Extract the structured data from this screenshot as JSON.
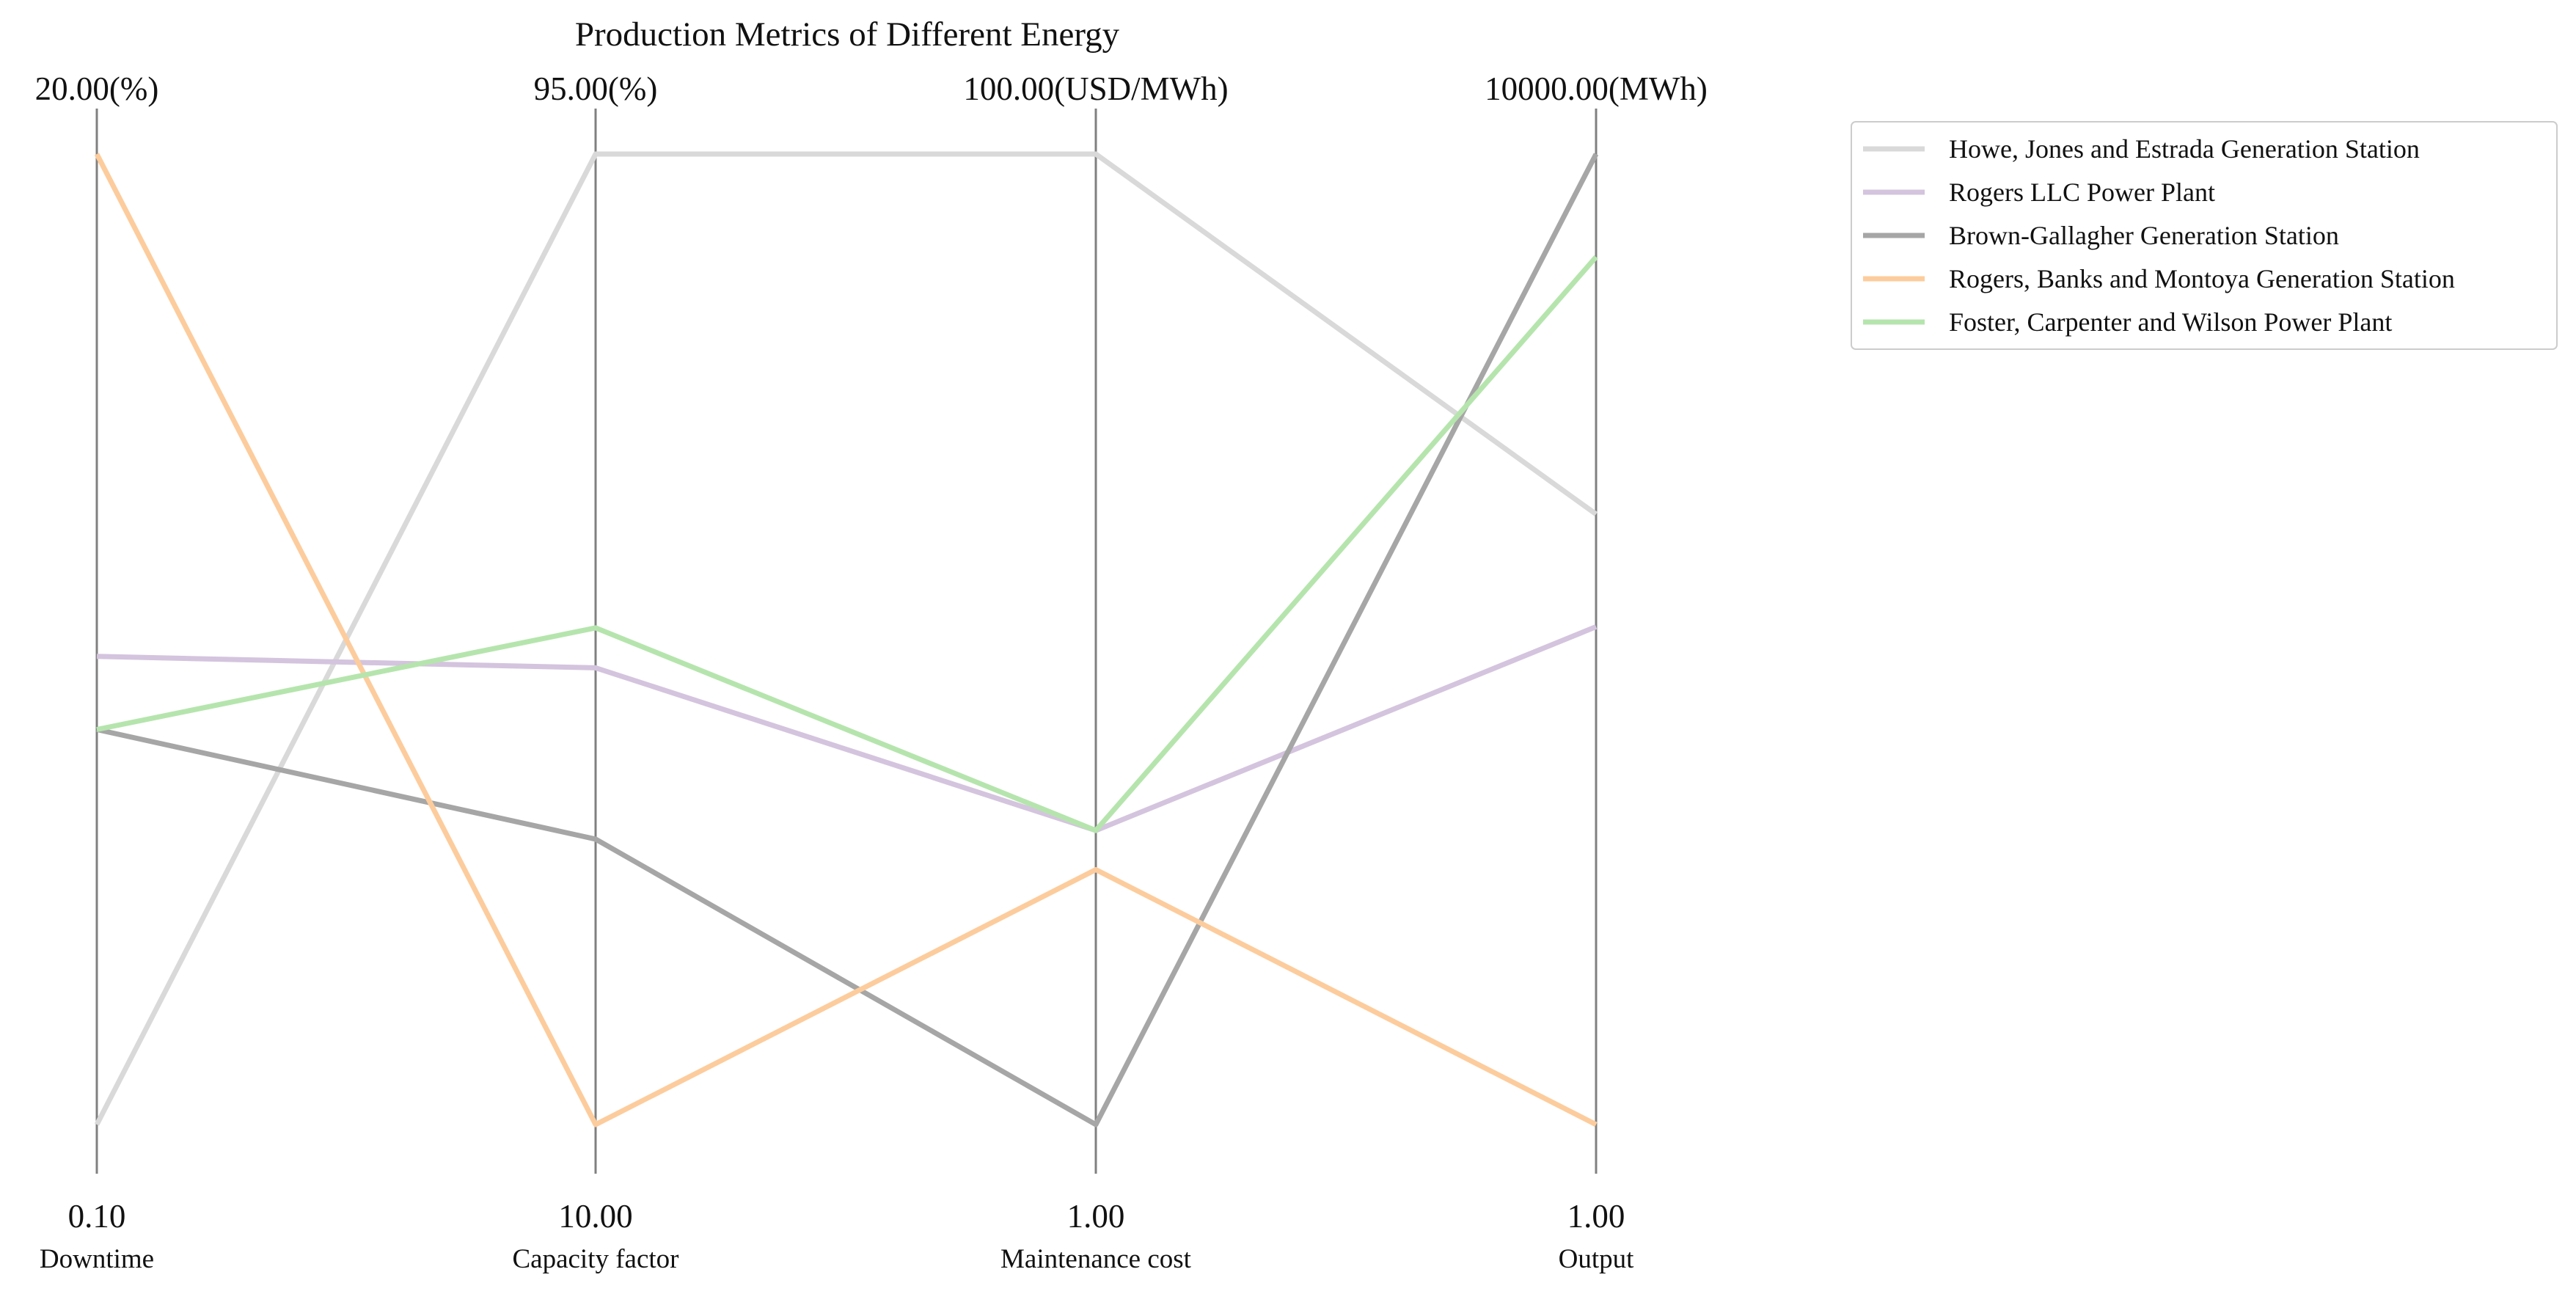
{
  "chart_data": {
    "type": "parallel-coordinates",
    "title": "Production Metrics of Different Energy",
    "axes": [
      {
        "name": "Downtime",
        "min_label": "0.10",
        "max_label": "20.00(%)",
        "min": 0.1,
        "max": 20.0
      },
      {
        "name": "Capacity factor",
        "min_label": "10.00",
        "max_label": "95.00(%)",
        "min": 10.0,
        "max": 95.0
      },
      {
        "name": "Maintenance cost",
        "min_label": "1.00",
        "max_label": "100.00(USD/MWh)",
        "min": 1.0,
        "max": 100.0
      },
      {
        "name": "Output",
        "min_label": "1.00",
        "max_label": "10000.00(MWh)",
        "min": 1.0,
        "max": 10000.0
      }
    ],
    "series": [
      {
        "name": "Howe, Jones and Estrada  Generation Station",
        "color": "#d9d9d9",
        "values": [
          0.1,
          95.0,
          100.0,
          6290
        ]
      },
      {
        "name": "Rogers LLC  Power Plant",
        "color": "#d4c4de",
        "values": [
          9.7,
          50.0,
          31.0,
          5130
        ]
      },
      {
        "name": "Brown-Gallagher  Generation Station",
        "color": "#a6a6a6",
        "values": [
          8.2,
          35.0,
          1.0,
          10000
        ]
      },
      {
        "name": "Rogers, Banks and Montoya  Generation Station",
        "color": "#fdcc9d",
        "values": [
          20.0,
          10.0,
          27.0,
          1.0
        ]
      },
      {
        "name": "Foster, Carpenter and Wilson  Power Plant",
        "color": "#b5e5ad",
        "values": [
          8.2,
          53.5,
          31.0,
          8940
        ]
      }
    ],
    "legend": {
      "position": "top-right"
    },
    "grid": false
  }
}
